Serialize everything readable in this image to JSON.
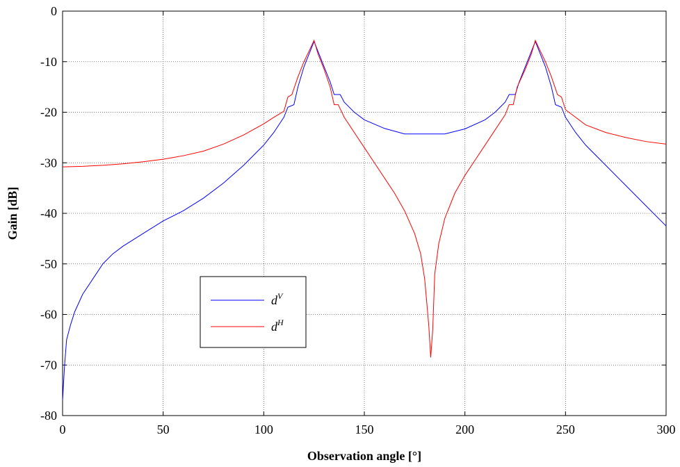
{
  "chart_data": {
    "type": "line",
    "xlabel": "Observation angle [°]",
    "ylabel": "Gain [dB]",
    "xlim": [
      0,
      300
    ],
    "ylim": [
      -80,
      0
    ],
    "xticks": [
      0,
      50,
      100,
      150,
      200,
      250,
      300
    ],
    "yticks": [
      0,
      -10,
      -20,
      -30,
      -40,
      -50,
      -60,
      -70,
      -80
    ],
    "grid": true,
    "series": [
      {
        "name": "dV",
        "color": "#0000ff",
        "x": [
          0,
          1,
          2,
          4,
          6,
          10,
          15,
          20,
          25,
          30,
          40,
          50,
          60,
          70,
          80,
          90,
          100,
          105,
          110,
          112,
          115,
          117,
          120,
          123,
          125,
          127,
          130,
          133,
          135,
          138,
          140,
          145,
          150,
          160,
          170,
          180,
          190,
          200,
          210,
          215,
          220,
          222,
          225,
          227,
          230,
          233,
          235,
          237,
          240,
          243,
          245,
          248,
          250,
          255,
          260,
          270,
          280,
          290,
          300
        ],
        "values": [
          -77,
          -70,
          -65,
          -62,
          -59.5,
          -56,
          -53,
          -50,
          -48,
          -46.5,
          -44,
          -41.5,
          -39.5,
          -37,
          -34,
          -30.5,
          -26.5,
          -24,
          -21,
          -19,
          -18.5,
          -15,
          -11,
          -8,
          -6,
          -8,
          -11,
          -14,
          -16.5,
          -16.5,
          -18,
          -20,
          -21.5,
          -23.2,
          -24.3,
          -24.3,
          -24.3,
          -23.3,
          -21.5,
          -20,
          -18,
          -16.5,
          -16.5,
          -14,
          -11,
          -8,
          -6,
          -8,
          -11,
          -15,
          -18.5,
          -19,
          -21,
          -24,
          -26.5,
          -30.5,
          -34.5,
          -38.5,
          -42.5
        ]
      },
      {
        "name": "dH",
        "color": "#ff0000",
        "x": [
          0,
          10,
          20,
          30,
          40,
          50,
          60,
          70,
          80,
          90,
          100,
          105,
          110,
          112,
          114,
          117,
          120,
          123,
          125,
          127,
          130,
          133,
          135,
          137,
          140,
          145,
          150,
          155,
          160,
          165,
          170,
          175,
          178,
          180,
          182,
          183,
          184,
          185,
          187,
          190,
          195,
          200,
          205,
          210,
          215,
          220,
          222,
          224,
          226,
          230,
          233,
          235,
          237,
          240,
          243,
          246,
          248,
          250,
          255,
          260,
          270,
          280,
          290,
          300
        ],
        "values": [
          -30.8,
          -30.7,
          -30.5,
          -30.2,
          -29.8,
          -29.3,
          -28.6,
          -27.7,
          -26.3,
          -24.5,
          -22.3,
          -21,
          -19.8,
          -17,
          -16.5,
          -13,
          -10,
          -7.5,
          -5.8,
          -8.5,
          -11.5,
          -15,
          -18.5,
          -18.5,
          -21,
          -24,
          -27,
          -30,
          -33,
          -36,
          -39.5,
          -44,
          -48,
          -53,
          -62,
          -68.5,
          -63,
          -52,
          -46,
          -41,
          -36,
          -32.5,
          -29.5,
          -26.5,
          -23.5,
          -20.5,
          -18.5,
          -18.5,
          -15,
          -11.5,
          -8.5,
          -5.8,
          -7.5,
          -10,
          -13,
          -16.5,
          -17,
          -19.5,
          -21,
          -22.5,
          -24,
          -25,
          -25.8,
          -26.3
        ]
      }
    ]
  }
}
